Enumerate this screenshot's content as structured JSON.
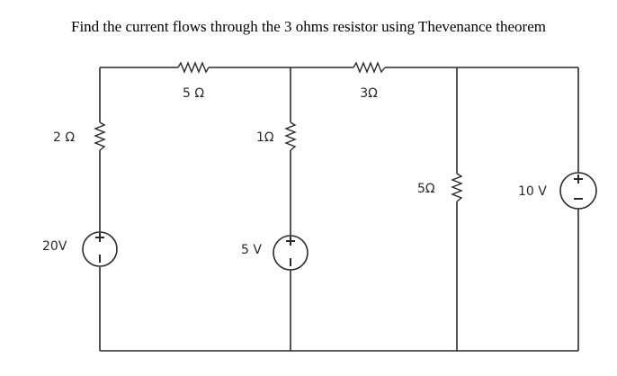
{
  "question": "Find the current flows through the 3 ohms resistor using Thevenance theorem",
  "labels": {
    "r_top_left": "5 Ω",
    "r_top_right": "3Ω",
    "r_left": "2 Ω",
    "r_mid": "1Ω",
    "r_right": "5Ω",
    "v_left": "20V",
    "v_mid": "5 V",
    "v_right": "10 V"
  }
}
